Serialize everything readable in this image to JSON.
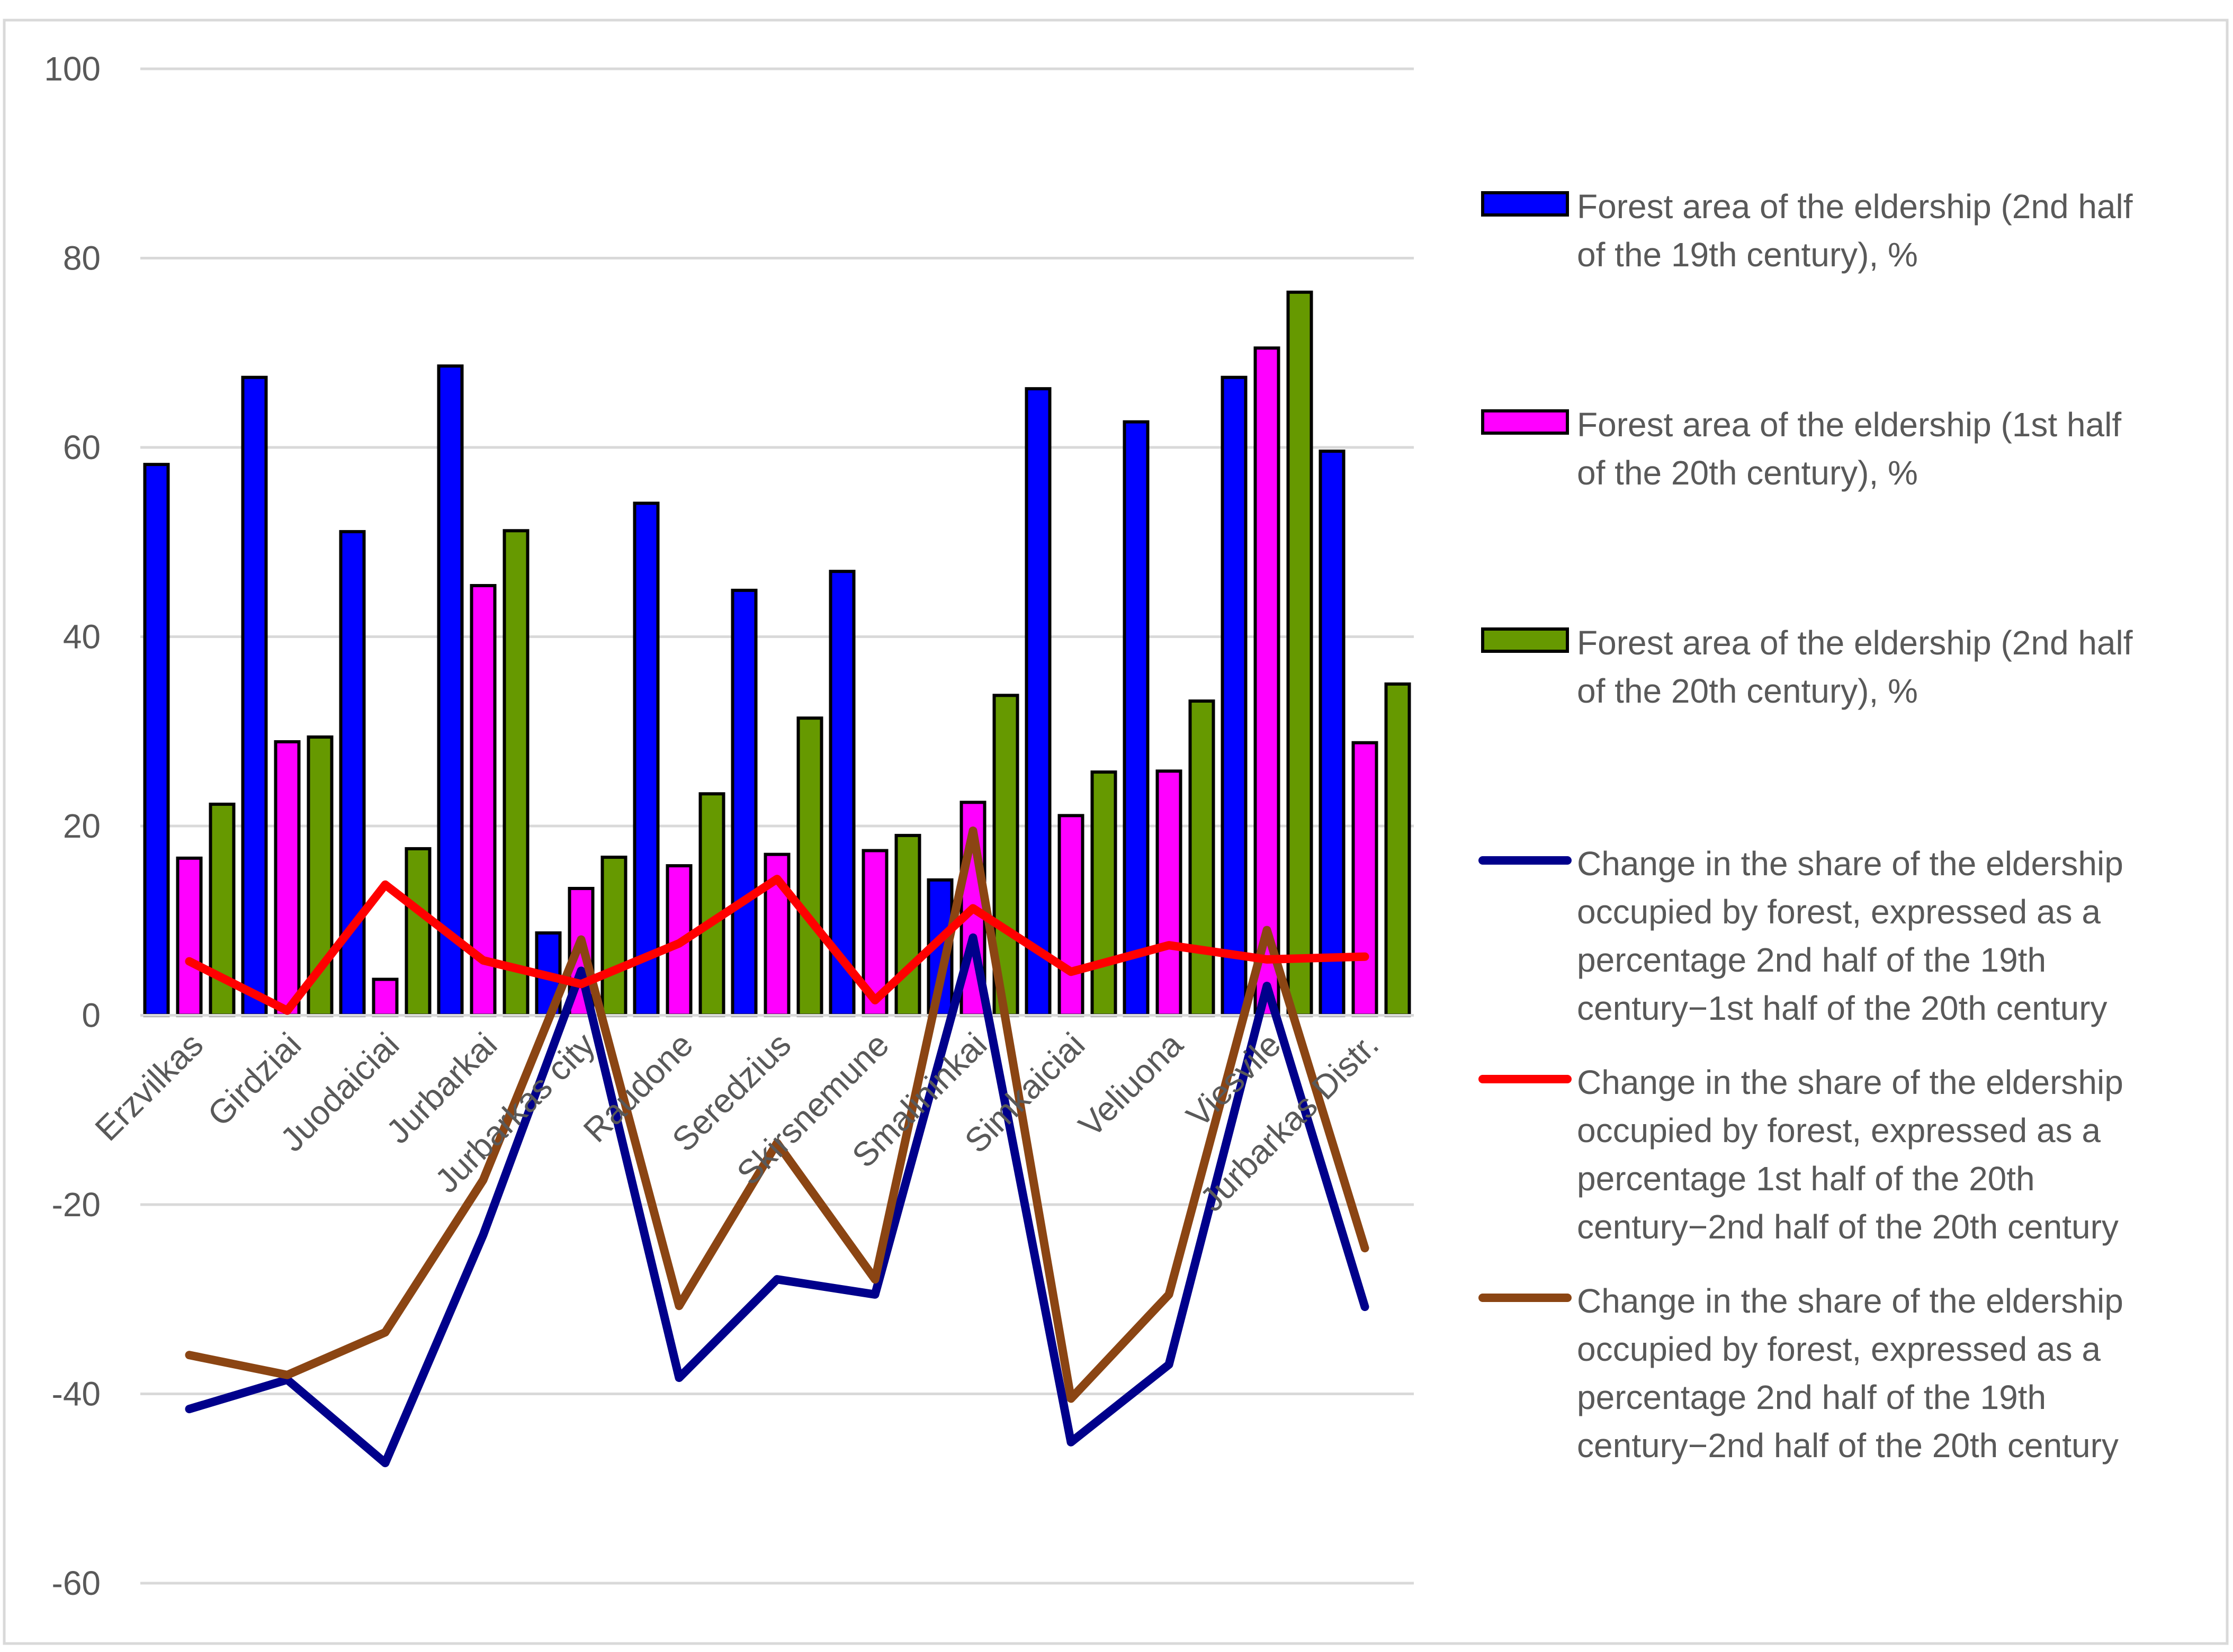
{
  "chart_data": {
    "type": "bar",
    "title": "",
    "xlabel": "",
    "ylabel": "",
    "ylim": [
      -60,
      100
    ],
    "yticks": [
      100,
      80,
      60,
      40,
      20,
      0,
      -20,
      -40,
      -60
    ],
    "grid": true,
    "legend_position": "right",
    "categories": [
      "Erzvilkas",
      "Girdziai",
      "Juodaiciai",
      "Jurbarkai",
      "Jurbarkas city",
      "Raudone",
      "Seredzius",
      "Skirsnemune",
      "Smalininkai",
      "Simkaiciai",
      "Veliuona",
      "Viesvile",
      "Jurbarkas Distr."
    ],
    "series": [
      {
        "name": "Forest area of the eldership (2nd half of the 19th century), %",
        "kind": "bar",
        "color": "#0000ff",
        "values": [
          58.2,
          67.4,
          51.1,
          68.6,
          8.7,
          54.1,
          44.9,
          46.9,
          14.3,
          66.2,
          62.7,
          67.4,
          59.6
        ]
      },
      {
        "name": "Forest area of the eldership (1st half of the 20th century), %",
        "kind": "bar",
        "color": "#ff00ff",
        "values": [
          16.6,
          28.9,
          3.8,
          45.4,
          13.4,
          15.8,
          17.0,
          17.4,
          22.5,
          21.1,
          25.8,
          70.5,
          28.8
        ]
      },
      {
        "name": "Forest area of the eldership (2nd half of the 20th century), %",
        "kind": "bar",
        "color": "#669900",
        "values": [
          22.3,
          29.4,
          17.6,
          51.2,
          16.7,
          23.4,
          31.4,
          19.0,
          33.8,
          25.7,
          33.2,
          76.4,
          35.0
        ]
      },
      {
        "name": "Change in the share of the eldership occupied by forest, expressed as a percentage 2nd half of the 19th century−1st half of the 20th century",
        "kind": "line",
        "color": "#00008b",
        "values": [
          -41.6,
          -38.5,
          -47.3,
          -23.2,
          4.7,
          -38.3,
          -27.9,
          -29.5,
          8.2,
          -45.1,
          -36.9,
          3.1,
          -30.8
        ]
      },
      {
        "name": "Change in the share of the eldership occupied by forest, expressed as a percentage 1st half of the 20th century−2nd half of the 20th century",
        "kind": "line",
        "color": "#ff0000",
        "values": [
          5.7,
          0.5,
          13.8,
          5.8,
          3.3,
          7.6,
          14.4,
          1.6,
          11.3,
          4.6,
          7.4,
          5.9,
          6.2
        ]
      },
      {
        "name": "Change in the share of the eldership occupied by forest, expressed as a percentage 2nd half of the 19th century−2nd half of the 20th century",
        "kind": "line",
        "color": "#8b4513",
        "values": [
          -35.9,
          -38.0,
          -33.5,
          -17.4,
          8.0,
          -30.7,
          -13.5,
          -27.9,
          19.5,
          -40.5,
          -29.5,
          9.0,
          -24.6
        ]
      }
    ]
  }
}
